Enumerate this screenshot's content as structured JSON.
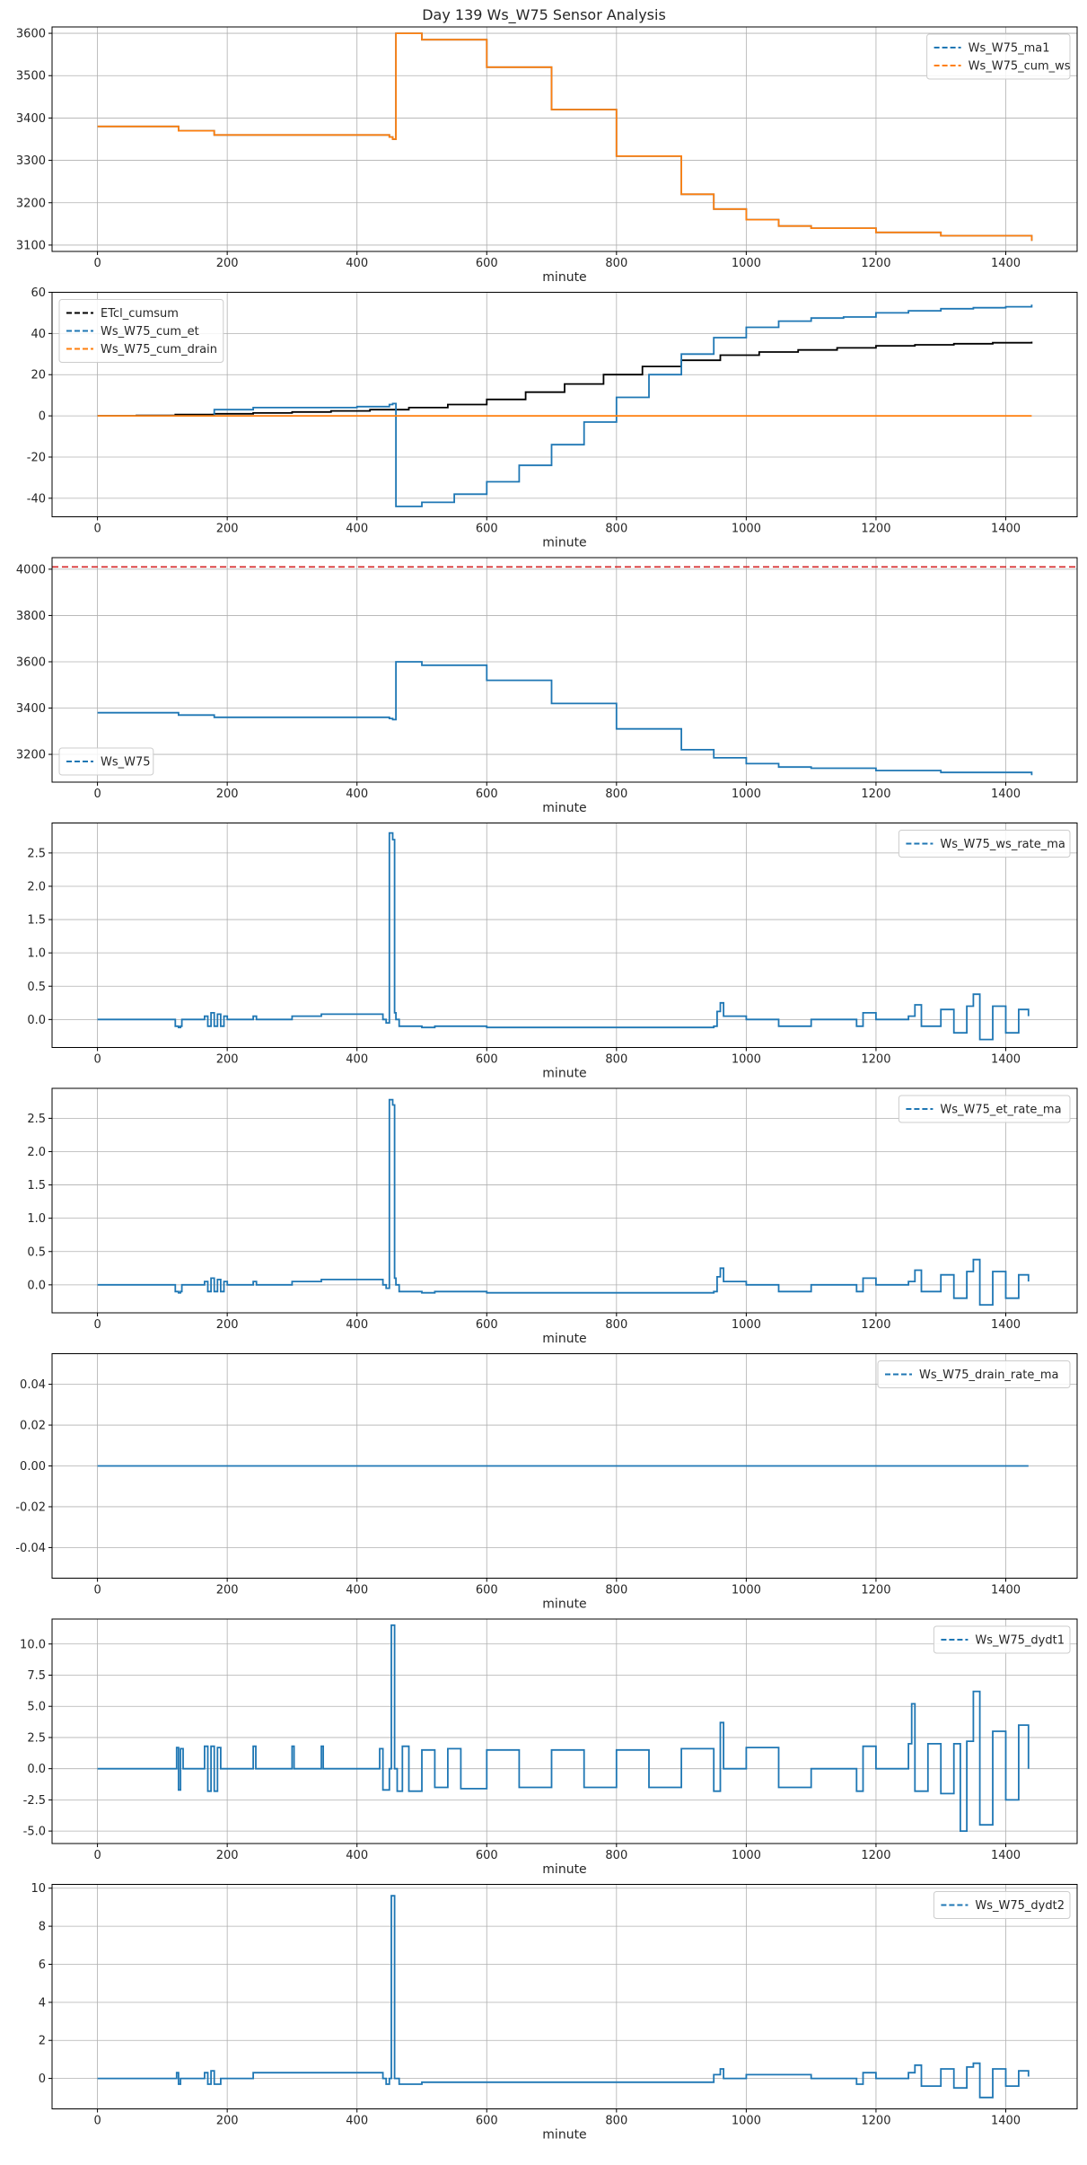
{
  "figure_title": "Day 139 Ws_W75 Sensor Analysis",
  "colors": {
    "blue": "#1f77b4",
    "orange": "#ff7f0e",
    "black": "#000000",
    "red": "#d62728",
    "grid": "#b0b0b0"
  },
  "chart_data": [
    {
      "type": "line",
      "title": "",
      "xlabel": "minute",
      "ylabel": "",
      "xlim": [
        -70,
        1510
      ],
      "ylim": [
        3085,
        3615
      ],
      "xticks": [
        0,
        200,
        400,
        600,
        800,
        1000,
        1200,
        1400
      ],
      "yticks": [
        3100,
        3200,
        3300,
        3400,
        3500,
        3600
      ],
      "ytick_labels": [
        "3100",
        "3200",
        "3300",
        "3400",
        "3500",
        "3600"
      ],
      "legend": {
        "position": "top-right",
        "entries": [
          {
            "label": "Ws_W75_ma1",
            "color": "#1f77b4"
          },
          {
            "label": "Ws_W75_cum_ws",
            "color": "#ff7f0e"
          }
        ]
      },
      "series": [
        {
          "name": "Ws_W75_ma1",
          "color": "#1f77b4",
          "x": [
            0,
            120,
            125,
            180,
            450,
            455,
            460,
            500,
            600,
            700,
            800,
            900,
            950,
            1000,
            1050,
            1100,
            1150,
            1200,
            1300,
            1440
          ],
          "y": [
            3380,
            3380,
            3370,
            3360,
            3355,
            3350,
            3600,
            3585,
            3520,
            3420,
            3310,
            3220,
            3185,
            3160,
            3145,
            3140,
            3140,
            3130,
            3122,
            3110
          ]
        },
        {
          "name": "Ws_W75_cum_ws",
          "color": "#ff7f0e",
          "x": [
            0,
            120,
            125,
            180,
            450,
            455,
            460,
            500,
            600,
            700,
            800,
            900,
            950,
            1000,
            1050,
            1100,
            1150,
            1200,
            1300,
            1440
          ],
          "y": [
            3380,
            3380,
            3370,
            3360,
            3355,
            3350,
            3600,
            3585,
            3520,
            3420,
            3310,
            3220,
            3185,
            3160,
            3145,
            3140,
            3140,
            3130,
            3122,
            3110
          ]
        }
      ]
    },
    {
      "type": "line",
      "title": "",
      "xlabel": "minute",
      "ylabel": "",
      "xlim": [
        -70,
        1510
      ],
      "ylim": [
        -49,
        60
      ],
      "xticks": [
        0,
        200,
        400,
        600,
        800,
        1000,
        1200,
        1400
      ],
      "yticks": [
        -40,
        -20,
        0,
        20,
        40,
        60
      ],
      "ytick_labels": [
        "-40",
        "-20",
        "0",
        "20",
        "40",
        "60"
      ],
      "legend": {
        "position": "top-left",
        "entries": [
          {
            "label": "ETcl_cumsum",
            "color": "#000000"
          },
          {
            "label": "Ws_W75_cum_et",
            "color": "#1f77b4"
          },
          {
            "label": "Ws_W75_cum_drain",
            "color": "#ff7f0e"
          }
        ]
      },
      "series": [
        {
          "name": "ETcl_cumsum",
          "color": "#000000",
          "x": [
            0,
            60,
            120,
            180,
            240,
            300,
            360,
            420,
            480,
            540,
            600,
            660,
            720,
            780,
            840,
            900,
            960,
            1020,
            1080,
            1140,
            1200,
            1260,
            1320,
            1380,
            1440
          ],
          "y": [
            0,
            0.2,
            0.6,
            1,
            1.4,
            1.9,
            2.4,
            3,
            4,
            5.5,
            8,
            11.5,
            15.5,
            20,
            24,
            27,
            29.5,
            31,
            32,
            33,
            34,
            34.5,
            35,
            35.5,
            36
          ]
        },
        {
          "name": "Ws_W75_cum_et",
          "color": "#1f77b4",
          "x": [
            0,
            120,
            180,
            240,
            300,
            400,
            450,
            455,
            460,
            500,
            550,
            600,
            650,
            700,
            750,
            800,
            850,
            900,
            950,
            1000,
            1050,
            1100,
            1150,
            1200,
            1250,
            1300,
            1350,
            1400,
            1440
          ],
          "y": [
            0,
            0,
            3,
            4,
            4,
            4.5,
            5.5,
            6,
            -44,
            -42,
            -38,
            -32,
            -24,
            -14,
            -3,
            9,
            20,
            30,
            38,
            43,
            46,
            47.5,
            48,
            50,
            51,
            52,
            52.5,
            53,
            54
          ]
        },
        {
          "name": "Ws_W75_cum_drain",
          "color": "#ff7f0e",
          "x": [
            0,
            1440
          ],
          "y": [
            0,
            0
          ]
        }
      ]
    },
    {
      "type": "line",
      "title": "",
      "xlabel": "minute",
      "ylabel": "",
      "xlim": [
        -70,
        1510
      ],
      "ylim": [
        3080,
        4050
      ],
      "xticks": [
        0,
        200,
        400,
        600,
        800,
        1000,
        1200,
        1400
      ],
      "yticks": [
        3200,
        3400,
        3600,
        3800,
        4000
      ],
      "ytick_labels": [
        "3200",
        "3400",
        "3600",
        "3800",
        "4000"
      ],
      "legend": {
        "position": "bottom-left",
        "entries": [
          {
            "label": "Ws_W75",
            "color": "#1f77b4"
          }
        ]
      },
      "hline": {
        "y": 4010,
        "color": "#d62728"
      },
      "series": [
        {
          "name": "Ws_W75",
          "color": "#1f77b4",
          "x": [
            0,
            120,
            125,
            180,
            450,
            455,
            460,
            500,
            600,
            700,
            800,
            900,
            950,
            1000,
            1050,
            1100,
            1150,
            1200,
            1300,
            1440
          ],
          "y": [
            3380,
            3380,
            3370,
            3360,
            3355,
            3350,
            3600,
            3585,
            3520,
            3420,
            3310,
            3220,
            3185,
            3160,
            3145,
            3140,
            3140,
            3130,
            3122,
            3110
          ]
        }
      ]
    },
    {
      "type": "line",
      "title": "",
      "xlabel": "minute",
      "ylabel": "",
      "xlim": [
        -70,
        1510
      ],
      "ylim": [
        -0.42,
        2.95
      ],
      "xticks": [
        0,
        200,
        400,
        600,
        800,
        1000,
        1200,
        1400
      ],
      "yticks": [
        0.0,
        0.5,
        1.0,
        1.5,
        2.0,
        2.5
      ],
      "ytick_labels": [
        "0.0",
        "0.5",
        "1.0",
        "1.5",
        "2.0",
        "2.5"
      ],
      "legend": {
        "position": "top-right",
        "entries": [
          {
            "label": "Ws_W75_ws_rate_ma",
            "color": "#1f77b4"
          }
        ]
      },
      "series": [
        {
          "name": "Ws_W75_ws_rate_ma",
          "color": "#1f77b4",
          "x": [
            0,
            118,
            120,
            125,
            128,
            130,
            165,
            170,
            175,
            180,
            185,
            190,
            195,
            200,
            240,
            245,
            300,
            345,
            440,
            445,
            450,
            452,
            455,
            458,
            460,
            465,
            500,
            520,
            600,
            700,
            800,
            900,
            950,
            955,
            960,
            965,
            1000,
            1050,
            1100,
            1170,
            1180,
            1200,
            1250,
            1260,
            1270,
            1300,
            1320,
            1340,
            1350,
            1360,
            1380,
            1400,
            1420,
            1435
          ],
          "y": [
            0,
            0,
            -0.1,
            -0.12,
            -0.1,
            0,
            0.05,
            -0.1,
            0.1,
            -0.1,
            0.08,
            -0.1,
            0.05,
            0,
            0.05,
            0,
            0.05,
            0.08,
            0,
            -0.05,
            2.8,
            2.8,
            2.7,
            0.1,
            0,
            -0.1,
            -0.12,
            -0.1,
            -0.12,
            -0.12,
            -0.12,
            -0.12,
            -0.1,
            0.12,
            0.25,
            0.05,
            0,
            -0.1,
            0,
            -0.1,
            0.1,
            0,
            0.05,
            0.22,
            -0.1,
            0.15,
            -0.2,
            0.2,
            0.38,
            -0.3,
            0.2,
            -0.2,
            0.15,
            0.05
          ]
        }
      ]
    },
    {
      "type": "line",
      "title": "",
      "xlabel": "minute",
      "ylabel": "",
      "xlim": [
        -70,
        1510
      ],
      "ylim": [
        -0.42,
        2.95
      ],
      "xticks": [
        0,
        200,
        400,
        600,
        800,
        1000,
        1200,
        1400
      ],
      "yticks": [
        0.0,
        0.5,
        1.0,
        1.5,
        2.0,
        2.5
      ],
      "ytick_labels": [
        "0.0",
        "0.5",
        "1.0",
        "1.5",
        "2.0",
        "2.5"
      ],
      "legend": {
        "position": "top-right",
        "entries": [
          {
            "label": "Ws_W75_et_rate_ma",
            "color": "#1f77b4"
          }
        ]
      },
      "series": [
        {
          "name": "Ws_W75_et_rate_ma",
          "color": "#1f77b4",
          "x": [
            0,
            118,
            120,
            125,
            128,
            130,
            165,
            170,
            175,
            180,
            185,
            190,
            195,
            200,
            240,
            245,
            300,
            345,
            440,
            445,
            450,
            452,
            455,
            458,
            460,
            465,
            500,
            520,
            600,
            700,
            800,
            900,
            950,
            955,
            960,
            965,
            1000,
            1050,
            1100,
            1170,
            1180,
            1200,
            1250,
            1260,
            1270,
            1300,
            1320,
            1340,
            1350,
            1360,
            1380,
            1400,
            1420,
            1435
          ],
          "y": [
            0,
            0,
            -0.1,
            -0.12,
            -0.1,
            0,
            0.05,
            -0.1,
            0.1,
            -0.1,
            0.08,
            -0.1,
            0.05,
            0,
            0.05,
            0,
            0.05,
            0.08,
            0,
            -0.05,
            2.78,
            2.78,
            2.7,
            0.1,
            0,
            -0.1,
            -0.12,
            -0.1,
            -0.12,
            -0.12,
            -0.12,
            -0.12,
            -0.1,
            0.12,
            0.25,
            0.05,
            0,
            -0.1,
            0,
            -0.1,
            0.1,
            0,
            0.05,
            0.22,
            -0.1,
            0.15,
            -0.2,
            0.2,
            0.38,
            -0.3,
            0.2,
            -0.2,
            0.15,
            0.05
          ]
        }
      ]
    },
    {
      "type": "line",
      "title": "",
      "xlabel": "minute",
      "ylabel": "",
      "xlim": [
        -70,
        1510
      ],
      "ylim": [
        -0.055,
        0.055
      ],
      "xticks": [
        0,
        200,
        400,
        600,
        800,
        1000,
        1200,
        1400
      ],
      "yticks": [
        -0.04,
        -0.02,
        0.0,
        0.02,
        0.04
      ],
      "ytick_labels": [
        "-0.04",
        "-0.02",
        "0.00",
        "0.02",
        "0.04"
      ],
      "legend": {
        "position": "top-right",
        "entries": [
          {
            "label": "Ws_W75_drain_rate_ma",
            "color": "#1f77b4"
          }
        ]
      },
      "series": [
        {
          "name": "Ws_W75_drain_rate_ma",
          "color": "#1f77b4",
          "x": [
            0,
            1435
          ],
          "y": [
            0,
            0
          ]
        }
      ]
    },
    {
      "type": "line",
      "title": "",
      "xlabel": "minute",
      "ylabel": "",
      "xlim": [
        -70,
        1510
      ],
      "ylim": [
        -6.0,
        12.0
      ],
      "xticks": [
        0,
        200,
        400,
        600,
        800,
        1000,
        1200,
        1400
      ],
      "yticks": [
        -5.0,
        -2.5,
        0.0,
        2.5,
        5.0,
        7.5,
        10.0
      ],
      "ytick_labels": [
        "-5.0",
        "-2.5",
        "0.0",
        "2.5",
        "5.0",
        "7.5",
        "10.0"
      ],
      "legend": {
        "position": "top-right",
        "entries": [
          {
            "label": "Ws_W75_dydt1",
            "color": "#1f77b4"
          }
        ]
      },
      "series": [
        {
          "name": "Ws_W75_dydt1",
          "color": "#1f77b4",
          "x": [
            0,
            118,
            122,
            125,
            128,
            132,
            165,
            170,
            175,
            180,
            185,
            190,
            240,
            244,
            300,
            303,
            345,
            348,
            430,
            435,
            440,
            450,
            453,
            455,
            458,
            462,
            470,
            480,
            500,
            520,
            540,
            560,
            600,
            650,
            700,
            750,
            800,
            850,
            900,
            950,
            960,
            965,
            1000,
            1050,
            1100,
            1170,
            1180,
            1200,
            1250,
            1255,
            1260,
            1280,
            1300,
            1320,
            1330,
            1340,
            1350,
            1360,
            1380,
            1400,
            1420,
            1435
          ],
          "y": [
            0,
            0,
            1.7,
            -1.7,
            1.6,
            0,
            1.8,
            -1.8,
            1.8,
            -1.8,
            1.7,
            0,
            1.8,
            0,
            1.8,
            0,
            1.8,
            0,
            0,
            1.6,
            -1.7,
            0,
            11.5,
            11.5,
            0,
            -1.8,
            1.8,
            -1.8,
            1.5,
            -1.5,
            1.6,
            -1.6,
            1.5,
            -1.5,
            1.5,
            -1.5,
            1.5,
            -1.5,
            1.6,
            -1.8,
            3.7,
            0,
            1.7,
            -1.5,
            0,
            -1.8,
            1.8,
            0,
            2,
            5.2,
            -1.8,
            2,
            -2,
            2,
            -5,
            2.2,
            6.2,
            -4.5,
            3,
            -2.5,
            3.5,
            0
          ]
        }
      ]
    },
    {
      "type": "line",
      "title": "",
      "xlabel": "minute",
      "ylabel": "",
      "xlim": [
        -70,
        1510
      ],
      "ylim": [
        -1.6,
        10.2
      ],
      "xticks": [
        0,
        200,
        400,
        600,
        800,
        1000,
        1200,
        1400
      ],
      "yticks": [
        0,
        2,
        4,
        6,
        8,
        10
      ],
      "ytick_labels": [
        "0",
        "2",
        "4",
        "6",
        "8",
        "10"
      ],
      "legend": {
        "position": "top-right",
        "entries": [
          {
            "label": "Ws_W75_dydt2",
            "color": "#1f77b4"
          }
        ]
      },
      "series": [
        {
          "name": "Ws_W75_dydt2",
          "color": "#1f77b4",
          "x": [
            0,
            118,
            122,
            125,
            128,
            165,
            170,
            175,
            180,
            190,
            240,
            300,
            345,
            440,
            445,
            450,
            453,
            455,
            458,
            465,
            500,
            600,
            700,
            800,
            900,
            950,
            960,
            965,
            1000,
            1100,
            1170,
            1180,
            1200,
            1250,
            1260,
            1270,
            1300,
            1320,
            1340,
            1350,
            1360,
            1380,
            1400,
            1420,
            1435
          ],
          "y": [
            0,
            0,
            0.3,
            -0.3,
            0,
            0.3,
            -0.3,
            0.4,
            -0.3,
            0,
            0.3,
            0.3,
            0.3,
            0,
            -0.3,
            0,
            9.6,
            9.6,
            0,
            -0.3,
            -0.2,
            -0.2,
            -0.2,
            -0.2,
            -0.2,
            0.2,
            0.5,
            0,
            0.2,
            0,
            -0.3,
            0.3,
            0,
            0.3,
            0.7,
            -0.4,
            0.5,
            -0.5,
            0.6,
            0.8,
            -1,
            0.5,
            -0.4,
            0.4,
            0.1
          ]
        }
      ]
    }
  ]
}
